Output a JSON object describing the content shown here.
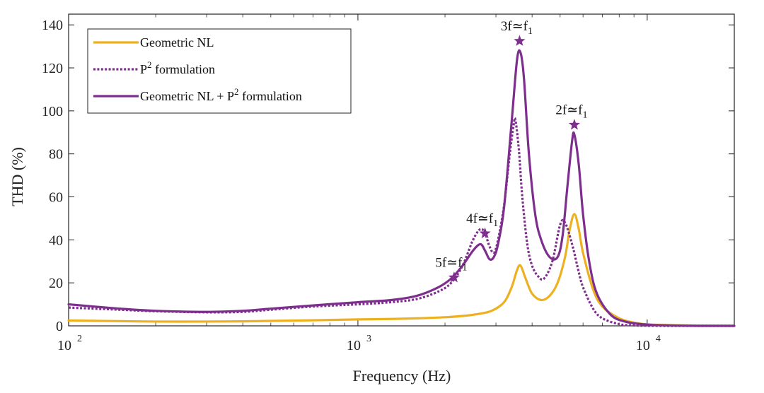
{
  "chart_data": {
    "type": "line",
    "xscale": "log",
    "xlim": [
      100,
      20000
    ],
    "ylim": [
      0,
      145
    ],
    "xlabel": "Frequency (Hz)",
    "ylabel": "THD (%)",
    "grid": false,
    "legend_position": "top-left",
    "x_ticks": [
      {
        "value": 100,
        "base": "10",
        "exp": "2"
      },
      {
        "value": 1000,
        "base": "10",
        "exp": "3"
      },
      {
        "value": 10000,
        "base": "10",
        "exp": "4"
      }
    ],
    "y_ticks": [
      0,
      20,
      40,
      60,
      80,
      100,
      120,
      140
    ],
    "series": [
      {
        "name": "Geometric NL",
        "color": "#EDB120",
        "style": "solid",
        "x": [
          100,
          150,
          200,
          300,
          400,
          500,
          700,
          1000,
          1300,
          1600,
          2000,
          2300,
          2600,
          2900,
          3200,
          3400,
          3550,
          3650,
          3800,
          4000,
          4300,
          4600,
          4900,
          5200,
          5400,
          5600,
          5800,
          6000,
          6500,
          7000,
          8000,
          9000,
          10000,
          12000,
          15000,
          20000
        ],
        "y": [
          2.5,
          2.2,
          2.0,
          2.0,
          2.1,
          2.3,
          2.6,
          3.0,
          3.2,
          3.5,
          4.0,
          4.6,
          5.5,
          7.0,
          11.0,
          18.0,
          26.0,
          28.0,
          22.0,
          15.0,
          12.0,
          14.0,
          20.0,
          32.0,
          45.0,
          52.0,
          45.0,
          34.0,
          17.0,
          9.0,
          3.5,
          1.5,
          0.7,
          0.3,
          0.1,
          0.0
        ]
      },
      {
        "name": "P² formulation",
        "color": "#7E2F8E",
        "style": "dotted",
        "x": [
          100,
          150,
          200,
          300,
          400,
          500,
          700,
          1000,
          1300,
          1600,
          1900,
          2100,
          2300,
          2500,
          2650,
          2750,
          2850,
          2950,
          3050,
          3200,
          3350,
          3450,
          3500,
          3600,
          3700,
          3850,
          4000,
          4200,
          4400,
          4700,
          5000,
          5200,
          5500,
          5800,
          6000,
          6500,
          7000,
          8000,
          9000,
          10000,
          12000,
          15000,
          20000
        ],
        "y": [
          8.5,
          7.5,
          6.8,
          6.3,
          6.5,
          7.5,
          9.0,
          10.0,
          11.0,
          12.5,
          16.0,
          20.0,
          28.0,
          40.0,
          45.0,
          43.0,
          37.0,
          34.0,
          40.0,
          56.0,
          80.0,
          93.0,
          96.0,
          82.0,
          60.0,
          38.0,
          28.0,
          23.0,
          22.0,
          30.0,
          47.0,
          48.0,
          38.0,
          25.0,
          18.0,
          8.0,
          3.5,
          0.8,
          0.2,
          0.05,
          0.0,
          0.0,
          0.0
        ]
      },
      {
        "name": "Geometric NL + P² formulation",
        "color": "#7E2F8E",
        "style": "solid",
        "x": [
          100,
          150,
          200,
          300,
          400,
          500,
          700,
          1000,
          1300,
          1600,
          1900,
          2100,
          2300,
          2500,
          2650,
          2750,
          2850,
          2950,
          3050,
          3200,
          3400,
          3550,
          3650,
          3750,
          3900,
          4100,
          4300,
          4600,
          4900,
          5100,
          5300,
          5500,
          5600,
          5800,
          6000,
          6300,
          6700,
          7500,
          8500,
          10000,
          12000,
          15000,
          20000
        ],
        "y": [
          10.0,
          8.0,
          7.0,
          6.5,
          7.0,
          8.0,
          9.5,
          11.0,
          12.0,
          14.0,
          18.0,
          22.0,
          28.0,
          35.0,
          38.0,
          35.0,
          31.0,
          32.0,
          38.0,
          55.0,
          95.0,
          124.0,
          127.0,
          115.0,
          80.0,
          52.0,
          40.0,
          32.0,
          32.0,
          42.0,
          65.0,
          86.0,
          89.0,
          75.0,
          52.0,
          30.0,
          15.0,
          5.0,
          1.8,
          0.6,
          0.2,
          0.0,
          0.0
        ]
      }
    ],
    "annotations": [
      {
        "label": "5f≃f",
        "sub": "1",
        "x": 2150,
        "y": 22.5
      },
      {
        "label": "4f≃f",
        "sub": "1",
        "x": 2750,
        "y": 43
      },
      {
        "label": "3f≃f",
        "sub": "1",
        "x": 3620,
        "y": 132.5
      },
      {
        "label": "2f≃f",
        "sub": "1",
        "x": 5600,
        "y": 93.5
      }
    ],
    "legend": [
      {
        "text": "Geometric NL",
        "sup": "",
        "rest": ""
      },
      {
        "text": "P",
        "sup": "2",
        "rest": " formulation"
      },
      {
        "text": "Geometric NL + P",
        "sup": "2",
        "rest": " formulation"
      }
    ],
    "marker_color": "#7E2F8E"
  }
}
